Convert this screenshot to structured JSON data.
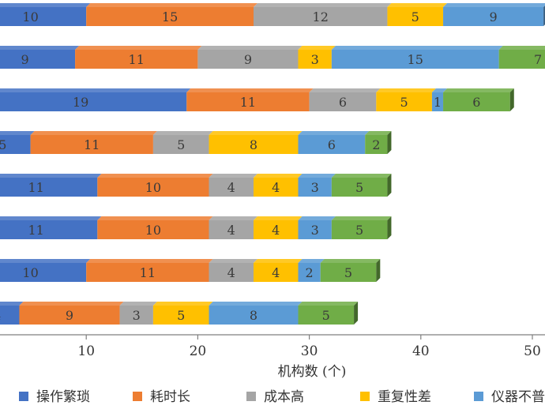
{
  "chart_data": {
    "type": "bar",
    "orientation": "horizontal",
    "stacked": true,
    "xlabel": "机构数 (个)",
    "xlim": [
      0,
      50
    ],
    "xticks": [
      10,
      20,
      30,
      40,
      50
    ],
    "tick_labels": [
      "10",
      "20",
      "30",
      "40",
      "50"
    ],
    "grid": false,
    "legend_position": "bottom",
    "series": [
      {
        "name": "操作繁琐",
        "color": "#4472c4",
        "values": [
          10,
          9,
          19,
          5,
          11,
          11,
          10,
          4
        ]
      },
      {
        "name": "耗时长",
        "color": "#ed7d31",
        "values": [
          15,
          11,
          11,
          11,
          10,
          10,
          11,
          9
        ]
      },
      {
        "name": "成本高",
        "color": "#a5a5a5",
        "values": [
          12,
          9,
          6,
          5,
          4,
          4,
          4,
          3
        ]
      },
      {
        "name": "重复性差",
        "color": "#ffc000",
        "values": [
          5,
          3,
          5,
          8,
          4,
          4,
          4,
          5
        ]
      },
      {
        "name": "仪器不普及",
        "color": "#5b9bd5",
        "values": [
          9,
          15,
          1,
          6,
          3,
          3,
          2,
          8
        ]
      },
      {
        "name": "",
        "color": "#70ad47",
        "values": [
          null,
          7,
          6,
          2,
          5,
          5,
          5,
          5
        ]
      }
    ]
  }
}
